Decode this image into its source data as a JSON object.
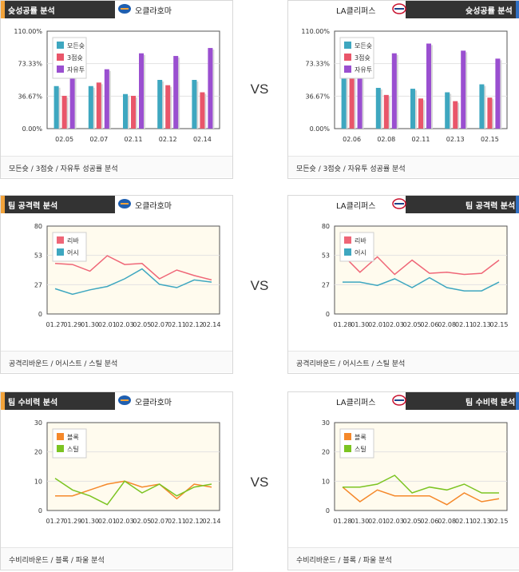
{
  "sections": [
    {
      "left": {
        "title": "슛성공률 분석",
        "team": "오클라호마",
        "footer": "모든슛 / 3점슛 / 자유투 성공률 분석",
        "colors": [
          "#f2a33a",
          "#333333"
        ]
      },
      "right": {
        "title": "슛성공률 분석",
        "team": "LA클리퍼스",
        "footer": "모든슛 / 3점슛 / 자유투 성공률 분석",
        "colors": [
          "#2f6fc2",
          "#333333"
        ]
      },
      "vs": "VS"
    },
    {
      "left": {
        "title": "팀 공격력 분석",
        "team": "오클라호마",
        "footer": "공격리바운드 / 어시스트 / 스틸 분석",
        "colors": [
          "#f2a33a",
          "#333333"
        ]
      },
      "right": {
        "title": "팀 공격력 분석",
        "team": "LA클리퍼스",
        "footer": "공격리바운드 / 어시스트 / 스틸 분석",
        "colors": [
          "#2f6fc2",
          "#333333"
        ]
      },
      "vs": "VS"
    },
    {
      "left": {
        "title": "팀 수비력 분석",
        "team": "오클라호마",
        "footer": "수비리바운드 / 블록 / 파울 분석",
        "colors": [
          "#f2a33a",
          "#333333"
        ]
      },
      "right": {
        "title": "팀 수비력 분석",
        "team": "LA클리퍼스",
        "footer": "수비리바운드 / 블록 / 파울 분석",
        "colors": [
          "#2f6fc2",
          "#333333"
        ]
      },
      "vs": "VS"
    }
  ],
  "chart_data": [
    {
      "id": "shoot-left",
      "type": "bar",
      "categories": [
        "02.05",
        "02.07",
        "02.11",
        "02.12",
        "02.14"
      ],
      "yticks": [
        "0.00%",
        "36.67%",
        "73.33%",
        "110.00%"
      ],
      "ylim": [
        0,
        110
      ],
      "legend_position": "top-left",
      "series": [
        {
          "name": "모든슛",
          "color": "#3ea7c0",
          "values": [
            48,
            48,
            39,
            55,
            55
          ]
        },
        {
          "name": "3점슛",
          "color": "#e9566a",
          "values": [
            37,
            52,
            37,
            49,
            41
          ]
        },
        {
          "name": "자유투",
          "color": "#9a4fd0",
          "values": [
            62,
            67,
            85,
            82,
            91
          ]
        }
      ]
    },
    {
      "id": "shoot-right",
      "type": "bar",
      "categories": [
        "02.06",
        "02.08",
        "02.11",
        "02.13",
        "02.15"
      ],
      "yticks": [
        "0.00%",
        "36.67%",
        "73.33%",
        "110.00%"
      ],
      "ylim": [
        0,
        110
      ],
      "legend_position": "top-left",
      "series": [
        {
          "name": "모든슛",
          "color": "#3ea7c0",
          "values": [
            60,
            46,
            45,
            41,
            50
          ]
        },
        {
          "name": "3점슛",
          "color": "#e9566a",
          "values": [
            60,
            38,
            34,
            31,
            35
          ]
        },
        {
          "name": "자유투",
          "color": "#9a4fd0",
          "values": [
            73,
            85,
            96,
            88,
            79
          ]
        }
      ]
    },
    {
      "id": "offense-left",
      "type": "line",
      "categories": [
        "01.27",
        "01.29",
        "01.30",
        "02.01",
        "02.03",
        "02.05",
        "02.07",
        "02.11",
        "02.12",
        "02.14"
      ],
      "yticks": [
        "0",
        "27",
        "53",
        "80"
      ],
      "ylim": [
        0,
        80
      ],
      "legend_position": "top-left",
      "series": [
        {
          "name": "리바",
          "color": "#ef6677",
          "values": [
            46,
            45,
            39,
            53,
            45,
            46,
            32,
            40,
            35,
            31
          ]
        },
        {
          "name": "어시",
          "color": "#3ea7c0",
          "values": [
            23,
            18,
            22,
            25,
            32,
            41,
            27,
            24,
            31,
            29
          ]
        }
      ]
    },
    {
      "id": "offense-right",
      "type": "line",
      "categories": [
        "01.28",
        "01.30",
        "02.01",
        "02.03",
        "02.05",
        "02.06",
        "02.08",
        "02.11",
        "02.13",
        "02.15"
      ],
      "yticks": [
        "0",
        "27",
        "53",
        "80"
      ],
      "ylim": [
        0,
        80
      ],
      "legend_position": "top-left",
      "series": [
        {
          "name": "리바",
          "color": "#ef6677",
          "values": [
            54,
            38,
            52,
            36,
            49,
            37,
            38,
            36,
            37,
            49
          ]
        },
        {
          "name": "어시",
          "color": "#3ea7c0",
          "values": [
            29,
            29,
            26,
            32,
            24,
            33,
            24,
            21,
            21,
            29
          ]
        }
      ]
    },
    {
      "id": "defense-left",
      "type": "line",
      "categories": [
        "01.27",
        "01.29",
        "01.30",
        "02.01",
        "02.03",
        "02.05",
        "02.07",
        "02.11",
        "02.12",
        "02.14"
      ],
      "yticks": [
        "0",
        "10",
        "20",
        "30"
      ],
      "ylim": [
        0,
        30
      ],
      "legend_position": "top-left",
      "series": [
        {
          "name": "블록",
          "color": "#f5882a",
          "values": [
            5,
            5,
            7,
            9,
            10,
            8,
            9,
            4,
            9,
            8
          ]
        },
        {
          "name": "스틸",
          "color": "#7cc422",
          "values": [
            11,
            7,
            5,
            2,
            10,
            6,
            9,
            5,
            8,
            9
          ]
        }
      ]
    },
    {
      "id": "defense-right",
      "type": "line",
      "categories": [
        "01.28",
        "01.30",
        "02.01",
        "02.03",
        "02.05",
        "02.06",
        "02.08",
        "02.11",
        "02.13",
        "02.15"
      ],
      "yticks": [
        "0",
        "10",
        "20",
        "30"
      ],
      "ylim": [
        0,
        30
      ],
      "legend_position": "top-left",
      "series": [
        {
          "name": "블록",
          "color": "#f5882a",
          "values": [
            8,
            3,
            7,
            5,
            5,
            5,
            2,
            6,
            3,
            4
          ]
        },
        {
          "name": "스틸",
          "color": "#7cc422",
          "values": [
            8,
            8,
            9,
            12,
            6,
            8,
            7,
            9,
            6,
            6
          ]
        }
      ]
    }
  ]
}
